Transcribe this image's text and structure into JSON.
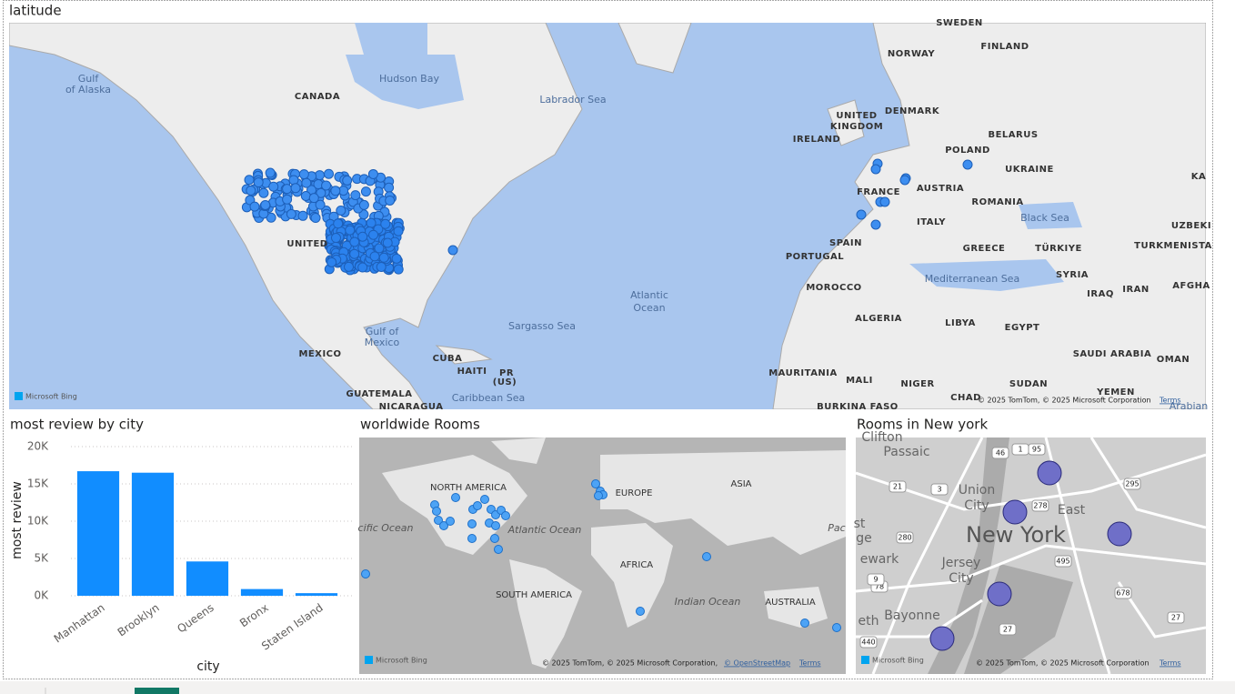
{
  "map_top": {
    "title": "latitude",
    "labels": [
      "Gulf",
      "of Alaska",
      "CANADA",
      "Hudson Bay",
      "Labrador Sea",
      "UNITED",
      "Atlantic",
      "Ocean",
      "Sargasso Sea",
      "Gulf of",
      "Mexico",
      "MEXICO",
      "CUBA",
      "HAITI",
      "PR",
      "(US)",
      "GUATEMALA",
      "NICARAGUA",
      "Caribbean Sea",
      "SWEDEN",
      "NORWAY",
      "FINLAND",
      "DENMARK",
      "UNITED",
      "KINGDOM",
      "IRELAND",
      "POLAND",
      "BELARUS",
      "UKRAINE",
      "FRANCE",
      "AUSTRIA",
      "ROMANIA",
      "ITALY",
      "Black Sea",
      "SPAIN",
      "PORTUGAL",
      "GREECE",
      "TÜRKIYE",
      "TURKMENISTA",
      "UZBEKI",
      "KA",
      "MOROCCO",
      "Mediterranean Sea",
      "SYRIA",
      "IRAQ",
      "IRAN",
      "AFGHA",
      "ALGERIA",
      "LIBYA",
      "EGYPT",
      "SAUDI ARABIA",
      "OMAN",
      "MAURITANIA",
      "MALI",
      "NIGER",
      "SUDAN",
      "YEMEN",
      "CHAD",
      "BURKINA FASO",
      "Arabian"
    ],
    "logo": "Microsoft Bing",
    "attribution": "© 2025 TomTom, © 2025 Microsoft Corporation",
    "terms": "Terms"
  },
  "chart_data": {
    "type": "bar",
    "title": "most review by city",
    "x_label": "city",
    "y_label": "most review",
    "categories": [
      "Manhattan",
      "Brooklyn",
      "Queens",
      "Bronx",
      "Staten Island"
    ],
    "values": [
      16700,
      16500,
      4600,
      900,
      350
    ],
    "color": "#118dff",
    "ylim": [
      0,
      20000
    ],
    "yticks": [
      {
        "value": 0,
        "label": "0K"
      },
      {
        "value": 5000,
        "label": "5K"
      },
      {
        "value": 10000,
        "label": "10K"
      },
      {
        "value": 15000,
        "label": "15K"
      },
      {
        "value": 20000,
        "label": "20K"
      }
    ],
    "grid": true
  },
  "map_world": {
    "title": "worldwide Rooms",
    "labels": [
      "NORTH AMERICA",
      "EUROPE",
      "ASIA",
      "cific Ocean",
      "Atlantic Ocean",
      "AFRICA",
      "SOUTH AMERICA",
      "Indian Ocean",
      "AUSTRALIA",
      "Pac"
    ],
    "logo": "Microsoft Bing",
    "attribution": "© 2025 TomTom, © 2025 Microsoft Corporation,",
    "osm": "© OpenStreetMap",
    "terms": "Terms"
  },
  "map_ny": {
    "title": "Rooms in New york",
    "labels": [
      "Clifton",
      "Passaic",
      "Union",
      "City",
      "New York",
      "East",
      "st",
      "ge",
      "ewark",
      "Jersey",
      "City",
      "Bayonne",
      "eth"
    ],
    "shields": [
      "46",
      "1",
      "95",
      "21",
      "3",
      "278",
      "280",
      "295",
      "495",
      "78",
      "9",
      "678",
      "440",
      "27",
      "27"
    ],
    "logo": "Microsoft Bing",
    "attribution": "© 2025 TomTom, © 2025 Microsoft Corporation",
    "terms": "Terms"
  }
}
